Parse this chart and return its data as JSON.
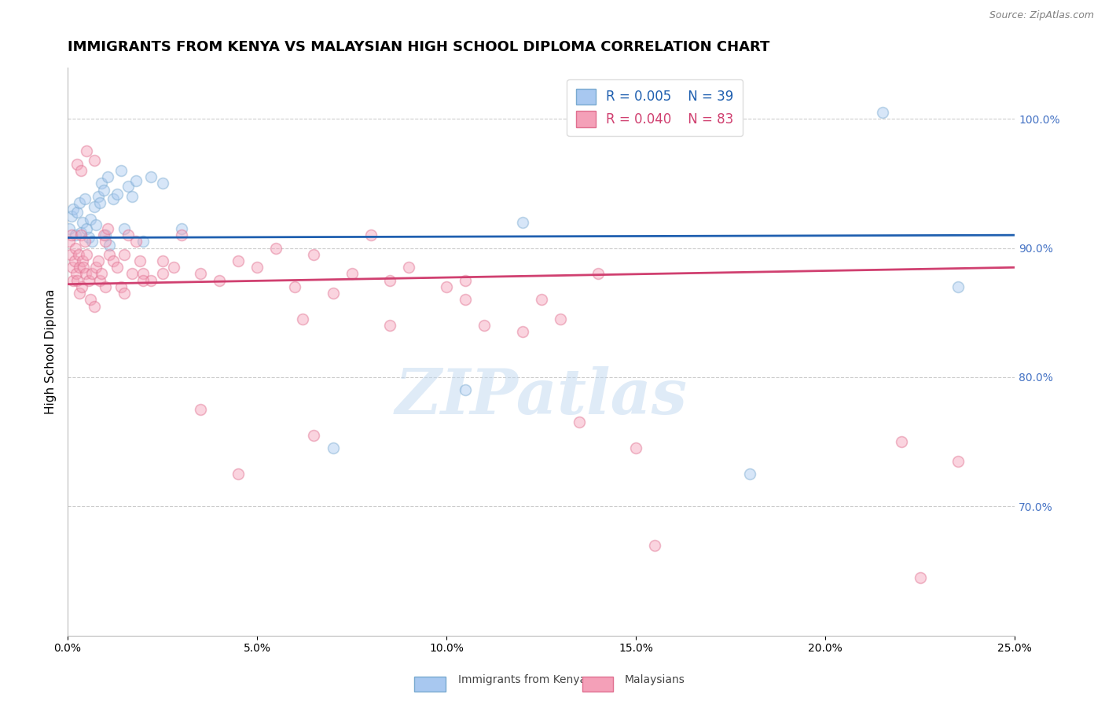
{
  "title": "IMMIGRANTS FROM KENYA VS MALAYSIAN HIGH SCHOOL DIPLOMA CORRELATION CHART",
  "source": "Source: ZipAtlas.com",
  "ylabel": "High School Diploma",
  "x_tick_labels": [
    "0.0%",
    "5.0%",
    "10.0%",
    "15.0%",
    "20.0%",
    "25.0%"
  ],
  "x_tick_values": [
    0.0,
    5.0,
    10.0,
    15.0,
    20.0,
    25.0
  ],
  "y_tick_values": [
    70.0,
    80.0,
    90.0,
    100.0
  ],
  "xlim": [
    0.0,
    25.0
  ],
  "ylim": [
    60.0,
    104.0
  ],
  "legend_r_values": [
    "R = 0.005",
    "R = 0.040"
  ],
  "legend_n_values": [
    "N = 39",
    "N = 83"
  ],
  "legend_labels": [
    "Immigrants from Kenya",
    "Malaysians"
  ],
  "blue_color": "#A8C8F0",
  "pink_color": "#F4A0B8",
  "blue_edge_color": "#7AAAD0",
  "pink_edge_color": "#E07090",
  "blue_line_color": "#2060B0",
  "pink_line_color": "#D04070",
  "blue_scatter_x": [
    0.05,
    0.1,
    0.15,
    0.2,
    0.25,
    0.3,
    0.35,
    0.4,
    0.45,
    0.5,
    0.55,
    0.6,
    0.65,
    0.7,
    0.75,
    0.8,
    0.85,
    0.9,
    0.95,
    1.0,
    1.05,
    1.1,
    1.2,
    1.3,
    1.4,
    1.5,
    1.6,
    1.7,
    1.8,
    2.0,
    2.2,
    2.5,
    3.0,
    7.0,
    10.5,
    12.0,
    18.0,
    21.5,
    23.5
  ],
  "blue_scatter_y": [
    91.5,
    92.5,
    93.0,
    91.0,
    92.8,
    93.5,
    91.2,
    92.0,
    93.8,
    91.5,
    90.8,
    92.2,
    90.5,
    93.2,
    91.8,
    94.0,
    93.5,
    95.0,
    94.5,
    91.0,
    95.5,
    90.2,
    93.8,
    94.2,
    96.0,
    91.5,
    94.8,
    94.0,
    95.2,
    90.5,
    95.5,
    95.0,
    91.5,
    74.5,
    79.0,
    92.0,
    72.5,
    100.5,
    87.0
  ],
  "pink_scatter_x": [
    0.05,
    0.08,
    0.1,
    0.12,
    0.15,
    0.18,
    0.2,
    0.22,
    0.25,
    0.28,
    0.3,
    0.32,
    0.35,
    0.38,
    0.4,
    0.42,
    0.45,
    0.48,
    0.5,
    0.55,
    0.6,
    0.65,
    0.7,
    0.75,
    0.8,
    0.85,
    0.9,
    0.95,
    1.0,
    1.05,
    1.1,
    1.2,
    1.3,
    1.4,
    1.5,
    1.6,
    1.7,
    1.8,
    1.9,
    2.0,
    2.2,
    2.5,
    2.8,
    3.0,
    3.5,
    4.0,
    4.5,
    5.0,
    5.5,
    6.0,
    6.5,
    7.0,
    7.5,
    8.0,
    8.5,
    9.0,
    10.0,
    10.5,
    11.0,
    12.0,
    12.5,
    13.0,
    14.0,
    15.0,
    6.2,
    22.0,
    23.5,
    0.25,
    0.35,
    0.5,
    0.7,
    1.0,
    1.5,
    2.0,
    2.5,
    3.5,
    4.5,
    8.5,
    10.5,
    13.5,
    15.5,
    22.5,
    6.5
  ],
  "pink_scatter_y": [
    90.5,
    89.5,
    91.0,
    88.5,
    87.5,
    89.0,
    90.0,
    88.0,
    87.5,
    89.5,
    86.5,
    88.5,
    91.0,
    87.0,
    89.0,
    88.5,
    90.5,
    88.0,
    89.5,
    87.5,
    86.0,
    88.0,
    85.5,
    88.5,
    89.0,
    87.5,
    88.0,
    91.0,
    90.5,
    91.5,
    89.5,
    89.0,
    88.5,
    87.0,
    89.5,
    91.0,
    88.0,
    90.5,
    89.0,
    88.0,
    87.5,
    89.0,
    88.5,
    91.0,
    88.0,
    87.5,
    89.0,
    88.5,
    90.0,
    87.0,
    89.5,
    86.5,
    88.0,
    91.0,
    87.5,
    88.5,
    87.0,
    86.0,
    84.0,
    83.5,
    86.0,
    84.5,
    88.0,
    74.5,
    84.5,
    75.0,
    73.5,
    96.5,
    96.0,
    97.5,
    96.8,
    87.0,
    86.5,
    87.5,
    88.0,
    77.5,
    72.5,
    84.0,
    87.5,
    76.5,
    67.0,
    64.5,
    75.5
  ],
  "blue_trend_x": [
    0.0,
    25.0
  ],
  "blue_trend_y": [
    90.8,
    91.0
  ],
  "pink_trend_x": [
    0.0,
    25.0
  ],
  "pink_trend_y": [
    87.2,
    88.5
  ],
  "watermark": "ZIPatlas",
  "background_color": "#ffffff",
  "grid_color": "#cccccc",
  "title_fontsize": 13,
  "axis_label_fontsize": 11,
  "tick_fontsize": 10,
  "right_tick_color": "#4472C4",
  "marker_size": 100,
  "marker_alpha": 0.45,
  "marker_linewidth": 1.2
}
